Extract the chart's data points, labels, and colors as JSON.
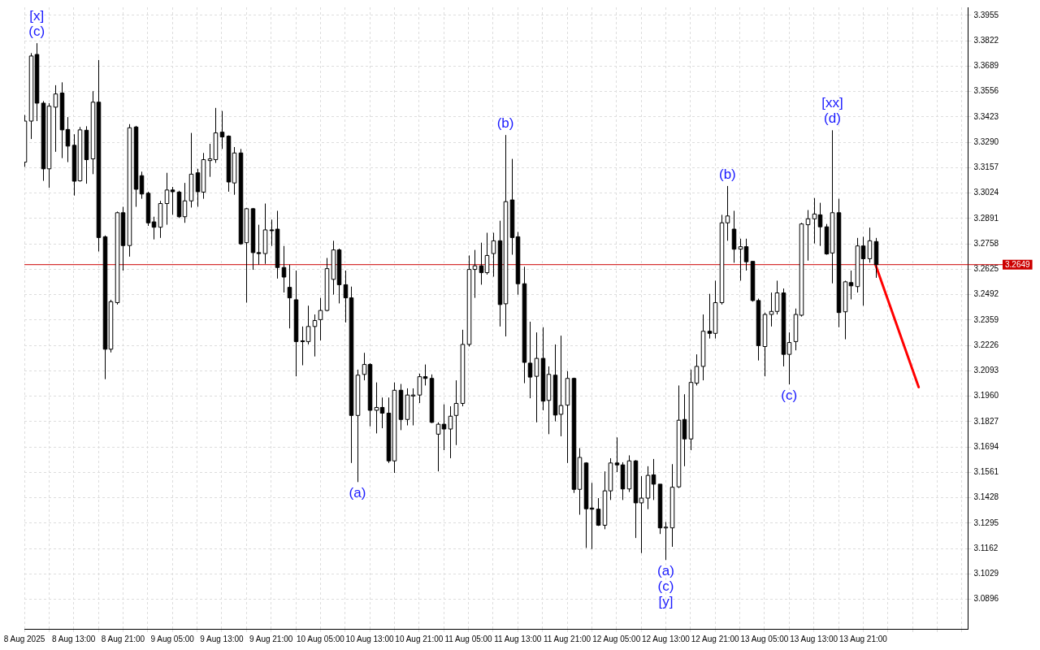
{
  "chart_data": {
    "type": "candlestick",
    "categories": [
      "8 Aug 2025",
      null,
      null,
      null,
      null,
      null,
      null,
      null,
      "8 Aug 13:00",
      null,
      null,
      null,
      null,
      null,
      null,
      null,
      "8 Aug 21:00",
      null,
      null,
      null,
      null,
      null,
      null,
      null,
      "9 Aug 05:00",
      null,
      null,
      null,
      null,
      null,
      null,
      null,
      "9 Aug 13:00",
      null,
      null,
      null,
      null,
      null,
      null,
      null,
      "9 Aug 21:00",
      null,
      null,
      null,
      null,
      null,
      null,
      null,
      "10 Aug 05:00",
      null,
      null,
      null,
      null,
      null,
      null,
      null,
      "10 Aug 13:00",
      null,
      null,
      null,
      null,
      null,
      null,
      null,
      "10 Aug 21:00",
      null,
      null,
      null,
      null,
      null,
      null,
      null,
      "11 Aug 05:00",
      null,
      null,
      null,
      null,
      null,
      null,
      null,
      "11 Aug 13:00",
      null,
      null,
      null,
      null,
      null,
      null,
      null,
      "11 Aug 21:00",
      null,
      null,
      null,
      null,
      null,
      null,
      null,
      "12 Aug 05:00",
      null,
      null,
      null,
      null,
      null,
      null,
      null,
      "12 Aug 13:00",
      null,
      null,
      null,
      null,
      null,
      null,
      null,
      "12 Aug 21:00",
      null,
      null,
      null,
      null,
      null,
      null,
      null,
      "13 Aug 05:00",
      null,
      null,
      null,
      null,
      null,
      null,
      null,
      "13 Aug 13:00",
      null,
      null,
      null,
      null,
      null,
      null,
      null,
      "13 Aug 21:00",
      null,
      null,
      null,
      null,
      null,
      null,
      null,
      null,
      null,
      null,
      null,
      null,
      null,
      null,
      null,
      null,
      null
    ],
    "ohlc": [
      [
        3.3186,
        3.3433,
        3.3161,
        3.3401
      ],
      [
        3.3401,
        3.3757,
        3.3307,
        3.3742
      ],
      [
        3.375,
        3.3809,
        3.3401,
        3.3495
      ],
      [
        3.3495,
        3.3506,
        3.3088,
        3.3151
      ],
      [
        3.3151,
        3.3495,
        3.3052,
        3.3479
      ],
      [
        3.3474,
        3.3589,
        3.324,
        3.3543
      ],
      [
        3.3548,
        3.3604,
        3.3207,
        3.3355
      ],
      [
        3.3357,
        3.3422,
        3.3186,
        3.327
      ],
      [
        3.3274,
        3.3332,
        3.3011,
        3.3086
      ],
      [
        3.3088,
        3.337,
        3.3084,
        3.3355
      ],
      [
        3.3353,
        3.3374,
        3.3073,
        3.3199
      ],
      [
        3.3203,
        3.3558,
        3.3123,
        3.35
      ],
      [
        3.35,
        3.3721,
        3.2718,
        3.2791
      ],
      [
        3.2795,
        3.2802,
        3.2049,
        3.2206
      ],
      [
        3.2206,
        3.2465,
        3.2189,
        3.2455
      ],
      [
        3.245,
        3.2927,
        3.244,
        3.2921
      ],
      [
        3.2921,
        3.2952,
        3.2618,
        3.2749
      ],
      [
        3.2749,
        3.3385,
        3.2691,
        3.3366
      ],
      [
        3.337,
        3.3376,
        3.2952,
        3.3044
      ],
      [
        3.3115,
        3.3136,
        3.2994,
        3.3019
      ],
      [
        3.3023,
        3.3031,
        3.2852,
        3.2868
      ],
      [
        3.2873,
        3.29,
        3.2781,
        3.2845
      ],
      [
        3.2845,
        3.2983,
        3.2789,
        3.2969
      ],
      [
        3.2969,
        3.313,
        3.2858,
        3.304
      ],
      [
        3.304,
        3.3056,
        3.291,
        3.3031
      ],
      [
        3.3029,
        3.3036,
        3.2893,
        3.29
      ],
      [
        3.29,
        3.3077,
        3.2868,
        3.2983
      ],
      [
        3.2983,
        3.3339,
        3.2948,
        3.3123
      ],
      [
        3.313,
        3.3151,
        3.2952,
        3.3031
      ],
      [
        3.3029,
        3.3234,
        3.2994,
        3.3199
      ],
      [
        3.3194,
        3.3282,
        3.3109,
        3.3203
      ],
      [
        3.3199,
        3.347,
        3.3182,
        3.3339
      ],
      [
        3.3343,
        3.3454,
        3.3255,
        3.3318
      ],
      [
        3.3322,
        3.3326,
        3.3031,
        3.3082
      ],
      [
        3.3077,
        3.3265,
        3.3015,
        3.3234
      ],
      [
        3.3234,
        3.3255,
        3.2753,
        3.2758
      ],
      [
        3.2764,
        3.2946,
        3.245,
        3.2942
      ],
      [
        3.2942,
        3.2946,
        3.2622,
        3.2712
      ],
      [
        3.2712,
        3.2858,
        3.2649,
        3.2707
      ],
      [
        3.2707,
        3.2969,
        3.2653,
        3.2831
      ],
      [
        3.2831,
        3.2885,
        3.2747,
        3.2827
      ],
      [
        3.2835,
        3.2931,
        3.2576,
        3.2634
      ],
      [
        3.2634,
        3.2747,
        3.2503,
        3.2584
      ],
      [
        3.253,
        3.2649,
        3.2315,
        3.2475
      ],
      [
        3.2465,
        3.2618,
        3.2064,
        3.2246
      ],
      [
        3.225,
        3.2325,
        3.2122,
        3.2246
      ],
      [
        3.2246,
        3.2434,
        3.2231,
        3.2325
      ],
      [
        3.2325,
        3.2388,
        3.2168,
        3.2356
      ],
      [
        3.2361,
        3.2475,
        3.2252,
        3.2409
      ],
      [
        3.2409,
        3.2684,
        3.2404,
        3.2628
      ],
      [
        3.2572,
        3.2774,
        3.2492,
        3.2726
      ],
      [
        3.2726,
        3.2733,
        3.2446,
        3.2544
      ],
      [
        3.2544,
        3.2618,
        3.2346,
        3.2475
      ],
      [
        3.2475,
        3.2534,
        3.161,
        3.1859
      ],
      [
        3.1859,
        3.2099,
        3.151,
        3.207
      ],
      [
        3.2074,
        3.2187,
        3.2043,
        3.2126
      ],
      [
        3.2126,
        3.2133,
        3.1802,
        3.1886
      ],
      [
        3.1886,
        3.2032,
        3.1765,
        3.1901
      ],
      [
        3.1901,
        3.1953,
        3.1792,
        3.1871
      ],
      [
        3.1871,
        3.1953,
        3.161,
        3.1621
      ],
      [
        3.1621,
        3.2032,
        3.1558,
        3.1991
      ],
      [
        3.1991,
        3.2024,
        3.1782,
        3.1838
      ],
      [
        3.1838,
        3.2001,
        3.1807,
        3.1966
      ],
      [
        3.1961,
        3.2001,
        3.1807,
        3.1966
      ],
      [
        3.1966,
        3.2078,
        3.1924,
        3.2062
      ],
      [
        3.2062,
        3.2126,
        3.2016,
        3.2053
      ],
      [
        3.2053,
        3.2074,
        3.1819,
        3.1823
      ],
      [
        3.1761,
        3.1823,
        3.1566,
        3.1813
      ],
      [
        3.1813,
        3.1917,
        3.1677,
        3.1788
      ],
      [
        3.1788,
        3.1907,
        3.1635,
        3.1855
      ],
      [
        3.1859,
        3.2043,
        3.1704,
        3.1922
      ],
      [
        3.1922,
        3.2308,
        3.1907,
        3.2231
      ],
      [
        3.2231,
        3.2697,
        3.222,
        3.2624
      ],
      [
        3.2624,
        3.2726,
        3.2475,
        3.2643
      ],
      [
        3.2643,
        3.2764,
        3.2544,
        3.2607
      ],
      [
        3.2607,
        3.2816,
        3.2597,
        3.2697
      ],
      [
        3.2707,
        3.2816,
        3.2586,
        3.2774
      ],
      [
        3.2774,
        3.2879,
        3.2325,
        3.244
      ],
      [
        3.2444,
        3.3328,
        3.2273,
        3.2979
      ],
      [
        3.2988,
        3.3203,
        3.2701,
        3.2791
      ],
      [
        3.2795,
        3.282,
        3.2492,
        3.2549
      ],
      [
        3.2549,
        3.2638,
        3.2028,
        3.2137
      ],
      [
        3.2133,
        3.235,
        3.1949,
        3.206
      ],
      [
        3.2064,
        3.2294,
        3.1823,
        3.2158
      ],
      [
        3.2158,
        3.2321,
        3.1886,
        3.1934
      ],
      [
        3.1938,
        3.2116,
        3.1761,
        3.2074
      ],
      [
        3.207,
        3.2231,
        3.1828,
        3.1861
      ],
      [
        3.1865,
        3.2277,
        3.175,
        3.1911
      ],
      [
        3.1913,
        3.2091,
        3.161,
        3.2053
      ],
      [
        3.2053,
        3.2057,
        3.1453,
        3.1472
      ],
      [
        3.1472,
        3.1688,
        3.1339,
        3.1639
      ],
      [
        3.161,
        3.1614,
        3.1165,
        3.137
      ],
      [
        3.1374,
        3.1506,
        3.1159,
        3.1368
      ],
      [
        3.1368,
        3.1426,
        3.128,
        3.1284
      ],
      [
        3.1284,
        3.1566,
        3.1263,
        3.1464
      ],
      [
        3.1464,
        3.1635,
        3.1416,
        3.161
      ],
      [
        3.161,
        3.1744,
        3.1562,
        3.16
      ],
      [
        3.16,
        3.1614,
        3.1416,
        3.1474
      ],
      [
        3.1474,
        3.165,
        3.1458,
        3.1621
      ],
      [
        3.1621,
        3.1625,
        3.1217,
        3.1401
      ],
      [
        3.1401,
        3.1541,
        3.1138,
        3.1426
      ],
      [
        3.1426,
        3.1593,
        3.1368,
        3.1545
      ],
      [
        3.1548,
        3.1631,
        3.1416,
        3.1499
      ],
      [
        3.1499,
        3.1499,
        3.1238,
        3.127
      ],
      [
        3.127,
        3.1301,
        3.1102,
        3.1274
      ],
      [
        3.127,
        3.1604,
        3.1171,
        3.1483
      ],
      [
        3.1485,
        3.2016,
        3.1479,
        3.1834
      ],
      [
        3.1838,
        3.197,
        3.1593,
        3.1736
      ],
      [
        3.1736,
        3.2099,
        3.1677,
        3.2032
      ],
      [
        3.2028,
        3.2179,
        3.2016,
        3.2116
      ],
      [
        3.2116,
        3.2388,
        3.2043,
        3.23
      ],
      [
        3.23,
        3.2496,
        3.2262,
        3.2289
      ],
      [
        3.2289,
        3.2565,
        3.2262,
        3.245
      ],
      [
        3.245,
        3.291,
        3.244,
        3.2868
      ],
      [
        3.2868,
        3.3061,
        3.2774,
        3.2904
      ],
      [
        3.2835,
        3.2931,
        3.2659,
        3.273
      ],
      [
        3.273,
        3.2785,
        3.2565,
        3.2743
      ],
      [
        3.2743,
        3.2785,
        3.2618,
        3.2664
      ],
      [
        3.2666,
        3.2666,
        3.2455,
        3.2461
      ],
      [
        3.2461,
        3.2471,
        3.2147,
        3.2225
      ],
      [
        3.222,
        3.2398,
        3.2064,
        3.2388
      ],
      [
        3.2388,
        3.2503,
        3.2325,
        3.2404
      ],
      [
        3.2404,
        3.2565,
        3.2388,
        3.2501
      ],
      [
        3.2501,
        3.2524,
        3.2116,
        3.2179
      ],
      [
        3.2179,
        3.2294,
        3.2022,
        3.2241
      ],
      [
        3.2246,
        3.2419,
        3.22,
        3.2388
      ],
      [
        3.2384,
        3.2868,
        3.2377,
        3.2862
      ],
      [
        3.2858,
        3.2935,
        3.267,
        3.2889
      ],
      [
        3.2889,
        3.2998,
        3.276,
        3.2914
      ],
      [
        3.291,
        3.2973,
        3.2747,
        3.2847
      ],
      [
        3.2847,
        3.2862,
        3.2701,
        3.2705
      ],
      [
        3.271,
        3.3353,
        3.2551,
        3.2921
      ],
      [
        3.2921,
        3.2994,
        3.2321,
        3.2398
      ],
      [
        3.2402,
        3.2565,
        3.2258,
        3.2559
      ],
      [
        3.2555,
        3.2618,
        3.2467,
        3.2538
      ],
      [
        3.2534,
        3.2789,
        3.2503,
        3.2747
      ],
      [
        3.2747,
        3.2795,
        3.2434,
        3.268
      ],
      [
        3.268,
        3.2843,
        3.2659,
        3.2774
      ],
      [
        3.277,
        3.2789,
        3.258,
        3.2649
      ],
      null,
      null,
      null,
      null,
      null,
      null,
      null,
      null,
      null,
      null,
      null,
      null,
      null,
      null,
      null
    ],
    "series": [
      {
        "type": "line",
        "values": [
          null,
          null,
          null,
          null,
          null,
          null,
          null,
          null,
          null,
          null,
          null,
          null,
          null,
          null,
          null,
          null,
          null,
          null,
          null,
          null,
          null,
          null,
          null,
          null,
          null,
          null,
          null,
          null,
          null,
          null,
          null,
          null,
          null,
          null,
          null,
          null,
          null,
          null,
          null,
          null,
          null,
          null,
          null,
          null,
          null,
          null,
          null,
          null,
          null,
          null,
          null,
          null,
          null,
          null,
          null,
          null,
          null,
          null,
          null,
          null,
          null,
          null,
          null,
          null,
          null,
          null,
          null,
          null,
          null,
          null,
          null,
          null,
          null,
          null,
          null,
          null,
          null,
          null,
          null,
          null,
          null,
          null,
          null,
          null,
          null,
          null,
          null,
          null,
          null,
          null,
          null,
          null,
          null,
          null,
          null,
          null,
          null,
          null,
          null,
          null,
          null,
          null,
          null,
          null,
          null,
          null,
          null,
          null,
          null,
          null,
          null,
          null,
          null,
          null,
          null,
          null,
          null,
          null,
          null,
          null,
          null,
          null,
          null,
          null,
          null,
          null,
          null,
          null,
          null,
          null,
          null,
          null,
          null,
          null,
          null,
          null,
          null,
          null,
          3.2649,
          null,
          null,
          null,
          null,
          null,
          null,
          3.2007,
          null,
          null,
          null,
          null,
          null,
          null,
          null,
          null
        ],
        "color": "#ff0000"
      }
    ],
    "ylim": [
      3.0741,
      3.3997
    ],
    "yticks": [
      3.0896,
      3.1029,
      3.1162,
      3.1295,
      3.1428,
      3.1561,
      3.1694,
      3.1827,
      {
        "value": 3.196,
        "label": "3.1960"
      },
      3.2093,
      3.2226,
      3.2359,
      3.2492,
      3.2625,
      3.2758,
      3.2891,
      3.3024,
      3.3157,
      {
        "value": 3.329,
        "label": "3.3290"
      },
      3.3423,
      3.3556,
      3.3689,
      3.3822,
      3.3955
    ],
    "ref_lines": [
      {
        "axis": "y",
        "value": 3.2649,
        "label": "3.2649",
        "color": "#cc0000"
      }
    ],
    "annotations": [
      {
        "text": "[x]",
        "y": 3.3809
      },
      {
        "text": "(c)",
        "y": 3.3809
      },
      {
        "text": "(a)",
        "y": 3.151
      },
      {
        "text": "(b)",
        "y": 3.3328
      },
      {
        "text": "(a)",
        "y": 3.1102
      },
      {
        "text": "(c)",
        "y": 3.1102
      },
      {
        "text": "[y]",
        "y": 3.1102
      },
      {
        "text": "(b)",
        "y": 3.3061
      },
      {
        "text": "(c)",
        "y": 3.2022
      },
      {
        "text": "[xx]",
        "y": 3.3353
      },
      {
        "text": "(d)",
        "y": 3.3353
      }
    ],
    "grid": true
  }
}
